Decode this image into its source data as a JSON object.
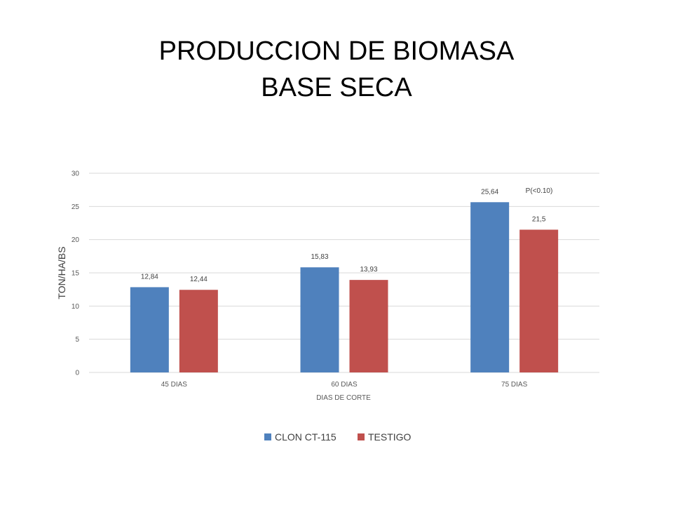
{
  "title_line1": "PRODUCCION DE BIOMASA",
  "title_line2": "BASE SECA",
  "chart_data": {
    "type": "bar",
    "title": "PRODUCCION DE BIOMASA BASE SECA",
    "xlabel": "DIAS DE CORTE",
    "ylabel": "TON/HA/BS",
    "categories": [
      "45 DIAS",
      "60 DIAS",
      "75 DIAS"
    ],
    "ylim": [
      0,
      30
    ],
    "yticks": [
      0,
      5,
      10,
      15,
      20,
      25,
      30
    ],
    "grid": true,
    "legend_position": "bottom",
    "series": [
      {
        "name": "CLON CT-115",
        "values": [
          12.84,
          15.83,
          25.64
        ],
        "labels": [
          "12,84",
          "15,83",
          "25,64"
        ],
        "color": "#4F81BD"
      },
      {
        "name": "TESTIGO",
        "values": [
          12.44,
          13.93,
          21.5
        ],
        "labels": [
          "12,44",
          "13,93",
          "21,5"
        ],
        "color": "#C0504D"
      }
    ],
    "annotation": "P(<0.10)"
  }
}
